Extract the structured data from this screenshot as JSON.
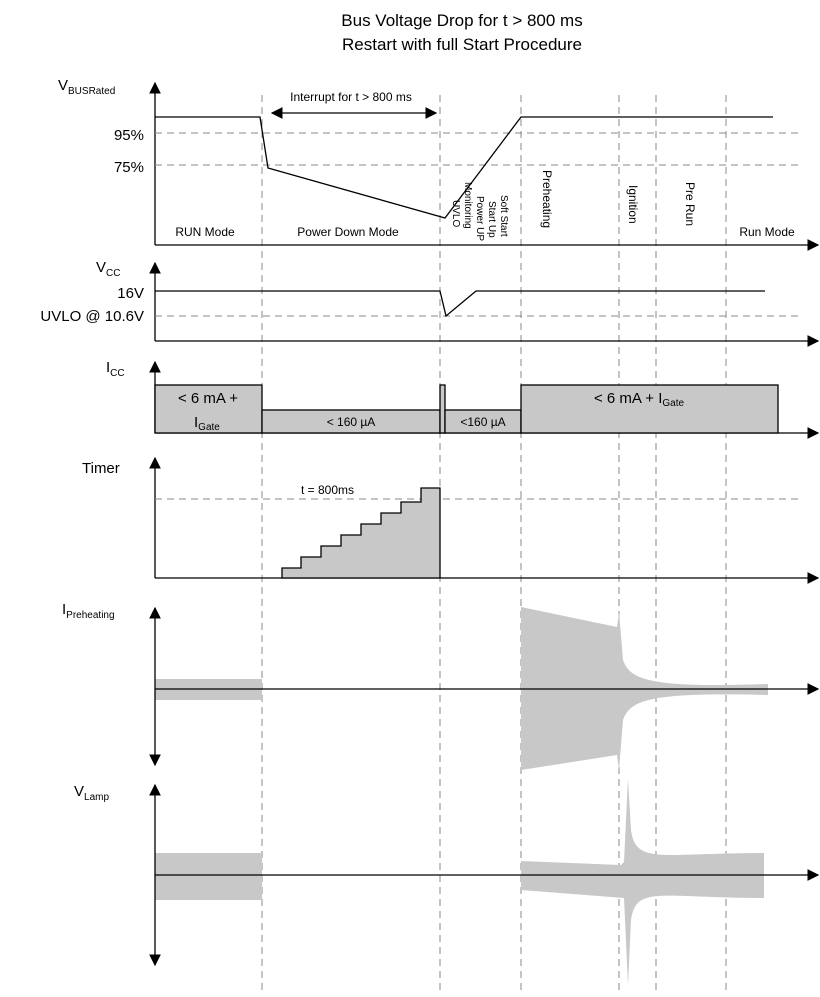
{
  "title": {
    "line1": "Bus Voltage Drop for t > 800 ms",
    "line2": "Restart with full Start Procedure"
  },
  "vbus": {
    "label": "V",
    "label_sub": "BUSRated",
    "level_95": "95%",
    "level_75": "75%",
    "interrupt": "Interrupt for t > 800 ms",
    "modes": {
      "run": "RUN Mode",
      "power_down": "Power Down Mode",
      "uvlo": "UVLO",
      "monitoring": "Monitoring",
      "power_up": "Power UP",
      "start_up": "Start Up",
      "soft_start": "Soft Start",
      "preheating": "Preheating",
      "ignition": "Ignition",
      "pre_run": "Pre Run",
      "run_end": "Run Mode"
    }
  },
  "vcc": {
    "label": "V",
    "label_sub": "CC",
    "level_16": "16V",
    "level_uvlo": "UVLO @ 10.6V"
  },
  "icc": {
    "label": "I",
    "label_sub": "CC",
    "run_main": "< 6 mA +",
    "run_i": "I",
    "run_sub": "Gate",
    "pd": "< 160 µA",
    "su": "<160 µA",
    "pre_main": "< 6 mA + I",
    "pre_sub": "Gate"
  },
  "timer": {
    "label": "Timer",
    "threshold": "t = 800ms"
  },
  "ipre": {
    "label": "I",
    "label_sub": "Preheating"
  },
  "vlamp": {
    "label": "V",
    "label_sub": "Lamp"
  }
}
